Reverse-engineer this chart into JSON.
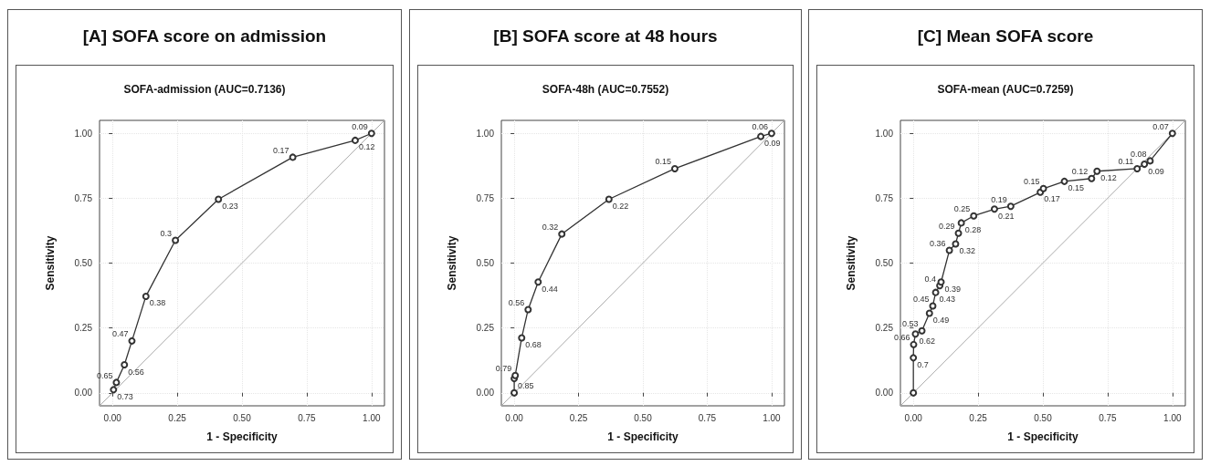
{
  "chart_data": [
    {
      "type": "line",
      "title": "[A] SOFA score on admission",
      "subtitle": "SOFA-admission (AUC=0.7136)",
      "xlabel": "1 - Specificity",
      "ylabel": "Sensitivity",
      "xlim": [
        -0.05,
        1.05
      ],
      "ylim": [
        -0.05,
        1.05
      ],
      "xticks": [
        {
          "value": 0,
          "label": "0.00"
        },
        {
          "value": 0.25,
          "label": "0.25"
        },
        {
          "value": 0.5,
          "label": "0.50"
        },
        {
          "value": 0.75,
          "label": "0.75"
        },
        {
          "value": 1,
          "label": "1.00"
        }
      ],
      "yticks": [
        {
          "value": 0,
          "label": "0.00"
        },
        {
          "value": 0.25,
          "label": "0.25"
        },
        {
          "value": 0.5,
          "label": "0.50"
        },
        {
          "value": 0.75,
          "label": "0.75"
        },
        {
          "value": 1,
          "label": "1.00"
        }
      ],
      "grid": true,
      "series": [
        {
          "color": "#aaaaaa",
          "marker": "none",
          "line_style": "solid",
          "x": [
            -0.05,
            1.05
          ],
          "values": [
            -0.05,
            1.05
          ]
        },
        {
          "color": "#333333",
          "marker": "circle",
          "line_style": "solid",
          "x": [
            0.004,
            0.015,
            0.046,
            0.075,
            0.129,
            0.243,
            0.409,
            0.696,
            0.937,
            1
          ],
          "values": [
            0.012,
            0.04,
            0.108,
            0.2,
            0.372,
            0.588,
            0.746,
            0.908,
            0.973,
            1
          ]
        }
      ],
      "annotations": [
        {
          "text": "0.73",
          "x": 0.004,
          "y": 0.012
        },
        {
          "text": "0.65",
          "x": 0.015,
          "y": 0.04
        },
        {
          "text": "0.56",
          "x": 0.046,
          "y": 0.108
        },
        {
          "text": "0.47",
          "x": 0.075,
          "y": 0.2
        },
        {
          "text": "0.38",
          "x": 0.129,
          "y": 0.372
        },
        {
          "text": "0.3",
          "x": 0.243,
          "y": 0.588
        },
        {
          "text": "0.23",
          "x": 0.409,
          "y": 0.746
        },
        {
          "text": "0.17",
          "x": 0.696,
          "y": 0.908
        },
        {
          "text": "0.12",
          "x": 0.937,
          "y": 0.973
        },
        {
          "text": "0.09",
          "x": 1,
          "y": 1
        }
      ]
    },
    {
      "type": "line",
      "title": "[B] SOFA score at 48 hours",
      "subtitle": "SOFA-48h (AUC=0.7552)",
      "xlabel": "1 - Specificity",
      "ylabel": "Sensitivity",
      "xlim": [
        -0.05,
        1.05
      ],
      "ylim": [
        -0.05,
        1.05
      ],
      "xticks": [
        {
          "value": 0,
          "label": "0.00"
        },
        {
          "value": 0.25,
          "label": "0.25"
        },
        {
          "value": 0.5,
          "label": "0.50"
        },
        {
          "value": 0.75,
          "label": "0.75"
        },
        {
          "value": 1,
          "label": "1.00"
        }
      ],
      "yticks": [
        {
          "value": 0,
          "label": "0.00"
        },
        {
          "value": 0.25,
          "label": "0.25"
        },
        {
          "value": 0.5,
          "label": "0.50"
        },
        {
          "value": 0.75,
          "label": "0.75"
        },
        {
          "value": 1,
          "label": "1.00"
        }
      ],
      "grid": true,
      "series": [
        {
          "color": "#aaaaaa",
          "marker": "none",
          "line_style": "solid",
          "x": [
            -0.05,
            1.05
          ],
          "values": [
            -0.05,
            1.05
          ]
        },
        {
          "color": "#333333",
          "marker": "circle",
          "line_style": "solid",
          "x": [
            0,
            0,
            0.004,
            0.029,
            0.054,
            0.093,
            0.185,
            0.368,
            0.624,
            0.958,
            1
          ],
          "values": [
            0,
            0.055,
            0.067,
            0.212,
            0.321,
            0.427,
            0.612,
            0.746,
            0.864,
            0.988,
            1
          ]
        }
      ],
      "annotations": [
        {
          "text": "0.85",
          "x": 0,
          "y": 0.055
        },
        {
          "text": "0.79",
          "x": 0.004,
          "y": 0.067
        },
        {
          "text": "0.68",
          "x": 0.029,
          "y": 0.212
        },
        {
          "text": "0.56",
          "x": 0.054,
          "y": 0.321
        },
        {
          "text": "0.44",
          "x": 0.093,
          "y": 0.427
        },
        {
          "text": "0.32",
          "x": 0.185,
          "y": 0.612
        },
        {
          "text": "0.22",
          "x": 0.368,
          "y": 0.746
        },
        {
          "text": "0.15",
          "x": 0.624,
          "y": 0.864
        },
        {
          "text": "0.09",
          "x": 0.958,
          "y": 0.988
        },
        {
          "text": "0.06",
          "x": 1,
          "y": 1
        }
      ]
    },
    {
      "type": "line",
      "title": "[C] Mean SOFA score",
      "subtitle": "SOFA-mean (AUC=0.7259)",
      "xlabel": "1 - Specificity",
      "ylabel": "Sensitivity",
      "xlim": [
        -0.05,
        1.05
      ],
      "ylim": [
        -0.05,
        1.05
      ],
      "xticks": [
        {
          "value": 0,
          "label": "0.00"
        },
        {
          "value": 0.25,
          "label": "0.25"
        },
        {
          "value": 0.5,
          "label": "0.50"
        },
        {
          "value": 0.75,
          "label": "0.75"
        },
        {
          "value": 1,
          "label": "1.00"
        }
      ],
      "yticks": [
        {
          "value": 0,
          "label": "0.00"
        },
        {
          "value": 0.25,
          "label": "0.25"
        },
        {
          "value": 0.5,
          "label": "0.50"
        },
        {
          "value": 0.75,
          "label": "0.75"
        },
        {
          "value": 1,
          "label": "1.00"
        }
      ],
      "grid": true,
      "series": [
        {
          "color": "#aaaaaa",
          "marker": "none",
          "line_style": "solid",
          "x": [
            -0.05,
            1.05
          ],
          "values": [
            -0.05,
            1.05
          ]
        },
        {
          "color": "#333333",
          "marker": "circle",
          "line_style": "solid",
          "x": [
            0,
            0,
            0.001,
            0.008,
            0.033,
            0.062,
            0.075,
            0.086,
            0.102,
            0.107,
            0.139,
            0.163,
            0.174,
            0.185,
            0.233,
            0.313,
            0.376,
            0.49,
            0.502,
            0.583,
            0.688,
            0.709,
            0.864,
            0.892,
            0.914,
            1
          ],
          "values": [
            0,
            0.135,
            0.186,
            0.227,
            0.239,
            0.307,
            0.335,
            0.387,
            0.413,
            0.427,
            0.549,
            0.574,
            0.615,
            0.655,
            0.682,
            0.708,
            0.719,
            0.773,
            0.787,
            0.815,
            0.826,
            0.854,
            0.864,
            0.881,
            0.894,
            1
          ]
        }
      ],
      "annotations": [
        {
          "text": "0.7",
          "x": 0,
          "y": 0.135
        },
        {
          "text": "0.66",
          "x": 0.001,
          "y": 0.186
        },
        {
          "text": "0.62",
          "x": 0.008,
          "y": 0.227
        },
        {
          "text": "0.53",
          "x": 0.033,
          "y": 0.239
        },
        {
          "text": "0.49",
          "x": 0.062,
          "y": 0.307
        },
        {
          "text": "0.45",
          "x": 0.075,
          "y": 0.335
        },
        {
          "text": "0.43",
          "x": 0.086,
          "y": 0.387
        },
        {
          "text": "0.4",
          "x": 0.102,
          "y": 0.413
        },
        {
          "text": "0.39",
          "x": 0.107,
          "y": 0.427
        },
        {
          "text": "0.36",
          "x": 0.139,
          "y": 0.549
        },
        {
          "text": "0.32",
          "x": 0.163,
          "y": 0.574
        },
        {
          "text": "0.29",
          "x": 0.174,
          "y": 0.615
        },
        {
          "text": "0.28",
          "x": 0.185,
          "y": 0.655
        },
        {
          "text": "0.25",
          "x": 0.233,
          "y": 0.682
        },
        {
          "text": "0.21",
          "x": 0.313,
          "y": 0.708
        },
        {
          "text": "0.19",
          "x": 0.376,
          "y": 0.719
        },
        {
          "text": "0.17",
          "x": 0.49,
          "y": 0.773
        },
        {
          "text": "0.15",
          "x": 0.502,
          "y": 0.787
        },
        {
          "text": "0.15",
          "x": 0.583,
          "y": 0.815
        },
        {
          "text": "0.12",
          "x": 0.688,
          "y": 0.826
        },
        {
          "text": "0.12",
          "x": 0.709,
          "y": 0.854
        },
        {
          "text": "0.11",
          "x": 0.864,
          "y": 0.864
        },
        {
          "text": "0.09",
          "x": 0.892,
          "y": 0.881
        },
        {
          "text": "0.08",
          "x": 0.914,
          "y": 0.894
        },
        {
          "text": "0.07",
          "x": 1,
          "y": 1
        }
      ]
    }
  ]
}
